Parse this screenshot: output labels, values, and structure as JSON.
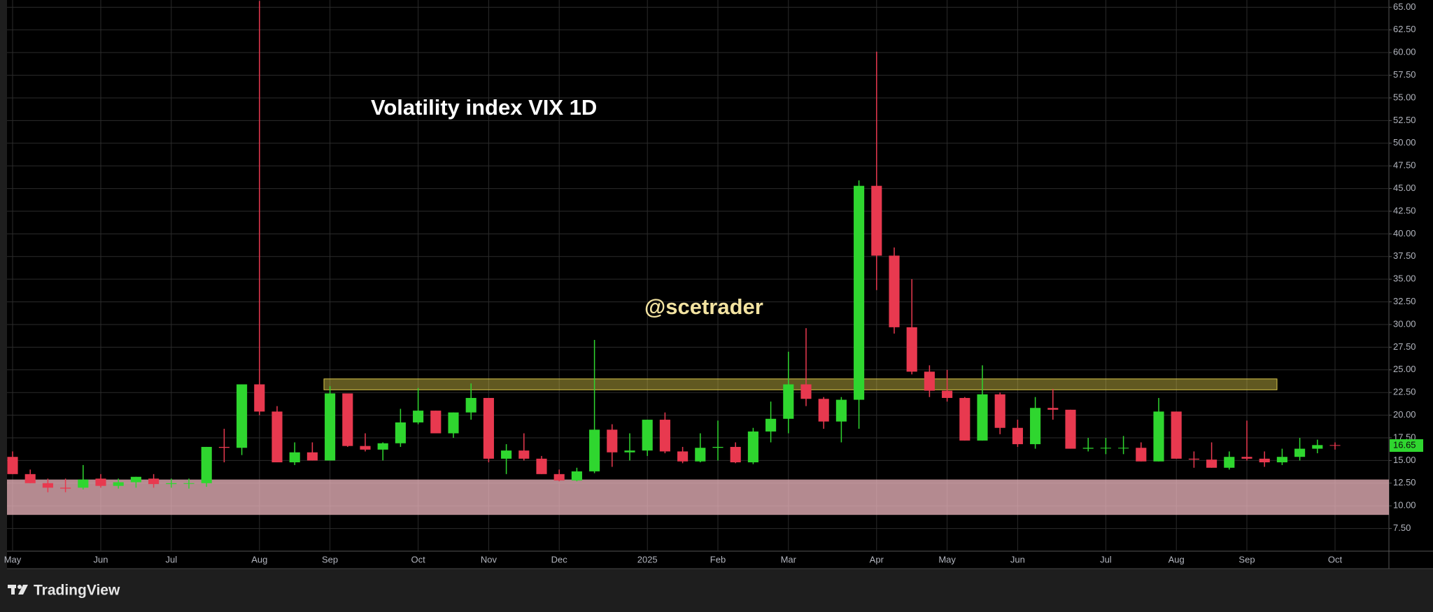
{
  "chart_data": {
    "type": "candlestick",
    "title": "Volatility index VIX 1D",
    "watermark": "@scetrader",
    "categories": [
      "May",
      null,
      null,
      null,
      null,
      "Jun",
      null,
      null,
      null,
      "Jul",
      null,
      null,
      null,
      null,
      "Aug",
      null,
      null,
      null,
      "Sep",
      null,
      null,
      null,
      null,
      "Oct",
      null,
      null,
      null,
      "Nov",
      null,
      null,
      null,
      "Dec",
      null,
      null,
      null,
      null,
      "2025",
      null,
      null,
      null,
      "Feb",
      null,
      null,
      null,
      "Mar",
      null,
      null,
      null,
      null,
      "Apr",
      null,
      null,
      null,
      "May",
      null,
      null,
      null,
      "Jun",
      null,
      null,
      null,
      null,
      "Jul",
      null,
      null,
      null,
      "Aug",
      null,
      null,
      null,
      "Sep",
      null,
      null,
      null,
      null,
      "Oct"
    ],
    "open": [
      15.4,
      13.5,
      12.5,
      12.0,
      12.0,
      13.0,
      12.2,
      12.6,
      13.0,
      12.4,
      12.5,
      12.5,
      16.5,
      16.4,
      23.4,
      20.4,
      14.8,
      15.9,
      15.0,
      22.4,
      16.6,
      16.2,
      16.9,
      19.2,
      20.5,
      18.0,
      20.3,
      21.9,
      15.2,
      16.1,
      15.2,
      13.5,
      12.8,
      13.8,
      18.4,
      15.9,
      16.1,
      19.5,
      16.0,
      14.9,
      16.4,
      16.5,
      14.8,
      18.2,
      19.6,
      23.4,
      21.8,
      19.3,
      21.7,
      45.3,
      37.6,
      29.7,
      24.8,
      22.7,
      21.9,
      17.2,
      22.3,
      18.6,
      16.8,
      20.8,
      20.6,
      16.3,
      16.4,
      16.4,
      16.4,
      14.9,
      20.4,
      15.2,
      15.1,
      14.2,
      15.4,
      15.2,
      14.8,
      15.4,
      16.3,
      16.7
    ],
    "high": [
      16.0,
      14.0,
      13.0,
      13.0,
      14.5,
      13.5,
      13.0,
      13.2,
      13.5,
      13.0,
      13.0,
      16.5,
      18.5,
      23.4,
      65.7,
      21.0,
      17.0,
      17.0,
      23.2,
      22.4,
      18.0,
      17.0,
      20.7,
      23.0,
      20.5,
      20.3,
      23.5,
      21.9,
      16.8,
      18.0,
      15.5,
      14.0,
      14.2,
      28.3,
      19.0,
      18.0,
      19.5,
      20.3,
      16.5,
      18.0,
      19.4,
      17.0,
      18.6,
      21.5,
      27.0,
      29.6,
      22.0,
      22.0,
      45.9,
      60.1,
      38.5,
      35.0,
      25.5,
      25.0,
      22.0,
      25.5,
      22.5,
      19.5,
      22.0,
      22.9,
      20.6,
      17.5,
      17.5,
      17.7,
      17.0,
      21.9,
      20.4,
      16.0,
      17.0,
      16.0,
      19.4,
      16.0,
      16.3,
      17.5,
      17.3,
      17.0
    ],
    "low": [
      13.5,
      12.5,
      11.5,
      11.5,
      11.8,
      12.0,
      11.9,
      12.0,
      12.0,
      12.0,
      11.9,
      12.1,
      14.8,
      15.6,
      20.0,
      14.8,
      14.5,
      15.0,
      15.0,
      16.5,
      16.0,
      15.0,
      16.5,
      19.0,
      18.0,
      17.5,
      19.5,
      14.8,
      13.5,
      15.0,
      13.5,
      12.7,
      12.7,
      13.6,
      14.3,
      15.0,
      15.5,
      15.8,
      14.7,
      14.8,
      15.0,
      14.7,
      14.6,
      17.0,
      18.0,
      21.0,
      18.5,
      17.0,
      18.5,
      33.8,
      29.0,
      24.5,
      22.0,
      21.5,
      17.2,
      17.2,
      17.9,
      16.5,
      16.3,
      19.5,
      16.3,
      16.0,
      15.7,
      15.7,
      14.9,
      14.9,
      15.2,
      14.2,
      14.2,
      14.0,
      15.0,
      14.3,
      14.5,
      15.0,
      15.8,
      16.2
    ],
    "close": [
      13.5,
      12.5,
      12.0,
      11.9,
      12.9,
      12.2,
      12.6,
      13.2,
      12.4,
      12.5,
      12.5,
      16.5,
      16.4,
      23.4,
      20.4,
      14.8,
      15.9,
      15.0,
      22.4,
      16.6,
      16.2,
      16.9,
      19.2,
      20.5,
      18.0,
      20.3,
      21.9,
      15.2,
      16.1,
      15.2,
      13.5,
      12.8,
      13.8,
      18.4,
      15.9,
      16.1,
      19.5,
      16.0,
      14.9,
      16.4,
      16.5,
      14.8,
      18.2,
      19.6,
      23.4,
      21.8,
      19.3,
      21.7,
      45.3,
      37.6,
      29.7,
      24.8,
      22.7,
      21.9,
      17.2,
      22.3,
      18.6,
      16.8,
      20.8,
      20.6,
      16.3,
      16.4,
      16.4,
      16.4,
      14.9,
      20.4,
      15.2,
      15.1,
      14.2,
      15.4,
      15.2,
      14.8,
      15.4,
      16.3,
      16.7,
      16.65
    ],
    "up_color": "#2fd62f",
    "down_color": "#e8394f",
    "ylim": [
      5.0,
      65.8
    ],
    "yticks": [
      {
        "value": 7.5,
        "label": "7.50"
      },
      {
        "value": 10,
        "label": "10.00"
      },
      {
        "value": 12.5,
        "label": "12.50"
      },
      {
        "value": 15,
        "label": "15.00"
      },
      {
        "value": 17.5,
        "label": "17.50"
      },
      {
        "value": 20,
        "label": "20.00"
      },
      {
        "value": 22.5,
        "label": "22.50"
      },
      {
        "value": 25,
        "label": "25.00"
      },
      {
        "value": 27.5,
        "label": "27.50"
      },
      {
        "value": 30,
        "label": "30.00"
      },
      {
        "value": 32.5,
        "label": "32.50"
      },
      {
        "value": 35,
        "label": "35.00"
      },
      {
        "value": 37.5,
        "label": "37.50"
      },
      {
        "value": 40,
        "label": "40.00"
      },
      {
        "value": 42.5,
        "label": "42.50"
      },
      {
        "value": 45,
        "label": "45.00"
      },
      {
        "value": 47.5,
        "label": "47.50"
      },
      {
        "value": 50,
        "label": "50.00"
      },
      {
        "value": 52.5,
        "label": "52.50"
      },
      {
        "value": 55,
        "label": "55.00"
      },
      {
        "value": 57.5,
        "label": "57.50"
      },
      {
        "value": 60,
        "label": "60.00"
      },
      {
        "value": 62.5,
        "label": "62.50"
      },
      {
        "value": 65,
        "label": "65.00"
      }
    ],
    "grid": true,
    "zones": [
      {
        "ylim": [
          22.8,
          24.0
        ],
        "color": "#d8c64a"
      },
      {
        "ylim": [
          9.0,
          12.9
        ],
        "color": "#f0b8c0"
      }
    ]
  },
  "footer": {
    "brand": "TradingView"
  }
}
